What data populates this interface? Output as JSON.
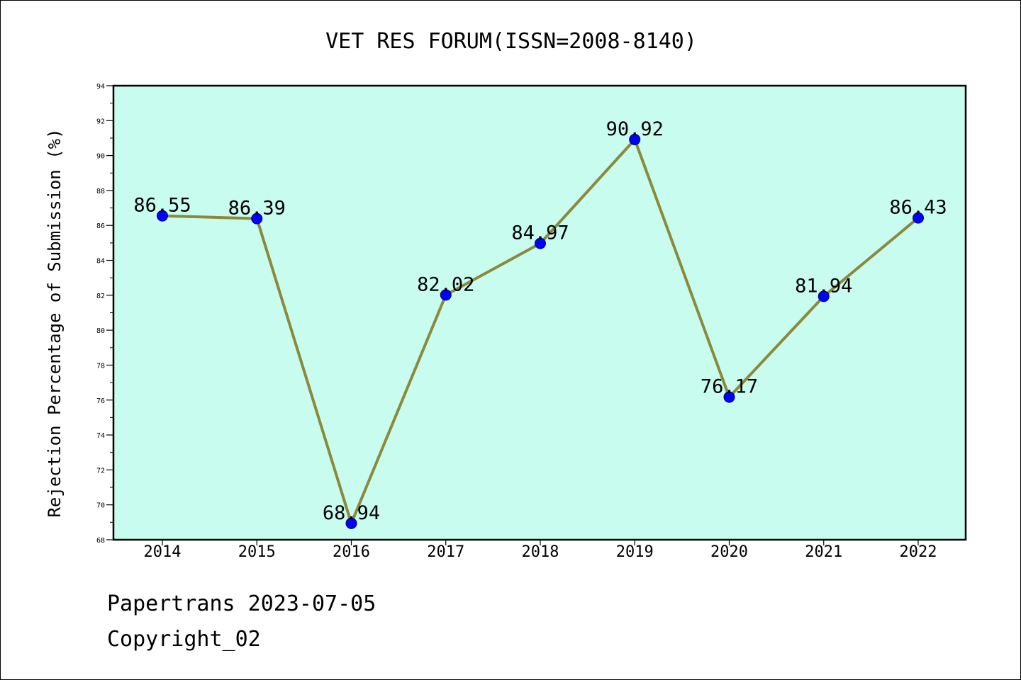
{
  "chart_data": {
    "type": "line",
    "title": "VET RES FORUM(ISSN=2008-8140)",
    "xlabel": "",
    "ylabel": "Rejection Percentage of Submission (%)",
    "categories": [
      "2014",
      "2015",
      "2016",
      "2017",
      "2018",
      "2019",
      "2020",
      "2021",
      "2022"
    ],
    "series": [
      {
        "values": [
          86.55,
          86.39,
          68.94,
          82.02,
          84.97,
          90.92,
          76.17,
          81.94,
          86.43
        ],
        "labels": [
          "86.55",
          "86.39",
          "68.94",
          "82.02",
          "84.97",
          "90.92",
          "76.17",
          "81.94",
          "86.43"
        ]
      }
    ],
    "ylim": [
      68,
      94
    ],
    "yticks": [
      68,
      70,
      72,
      74,
      76,
      78,
      80,
      82,
      84,
      86,
      88,
      90,
      92,
      94
    ],
    "grid": false,
    "legend": "none",
    "colors": {
      "plot_background": "#c8fcee",
      "line": "#8b8a3c",
      "marker": "#0000ff"
    }
  },
  "footer": {
    "line1": "Papertrans 2023-07-05",
    "line2": "Copyright_02"
  }
}
